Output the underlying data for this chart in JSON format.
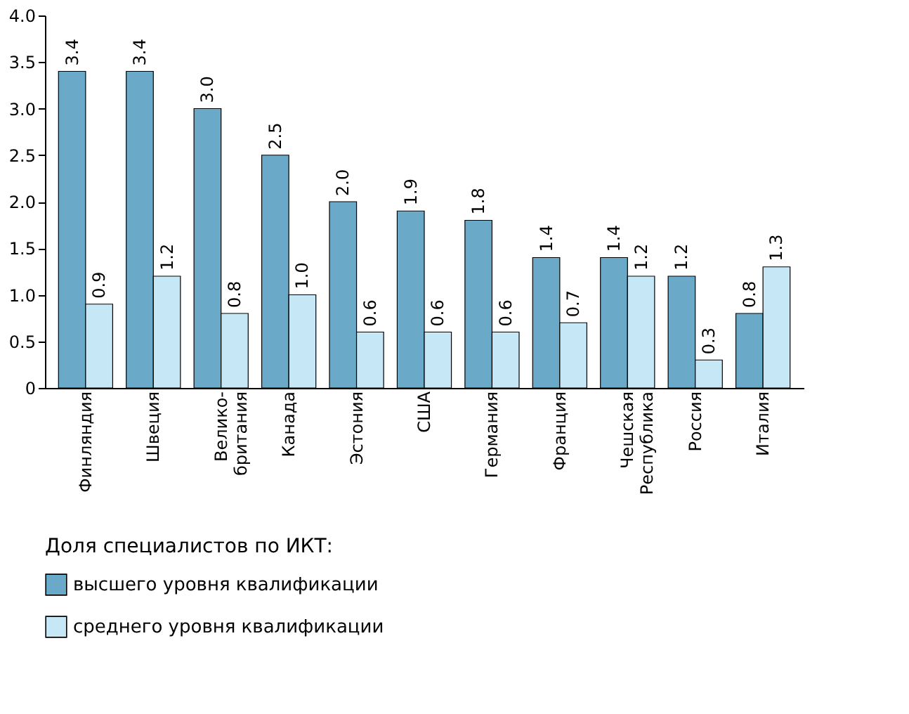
{
  "chart_data": {
    "type": "bar",
    "categories": [
      "Финляндия",
      "Швеция",
      "Велико-\nбритания",
      "Канада",
      "Эстония",
      "США",
      "Германия",
      "Франция",
      "Чешская\nРеспублика",
      "Россия",
      "Италия"
    ],
    "series": [
      {
        "name": "высшего уровня квалификации",
        "color": "#6aaac8",
        "values": [
          3.4,
          3.4,
          3.0,
          2.5,
          2.0,
          1.9,
          1.8,
          1.4,
          1.4,
          1.2,
          0.8
        ],
        "value_labels": [
          "3.4",
          "3.4",
          "3.0",
          "2.5",
          "2.0",
          "1.9",
          "1.8",
          "1.4",
          "1.4",
          "1.2",
          "0.8"
        ]
      },
      {
        "name": "среднего уровня квалификации",
        "color": "#c6e7f6",
        "values": [
          0.9,
          1.2,
          0.8,
          1.0,
          0.6,
          0.6,
          0.6,
          0.7,
          1.2,
          0.3,
          1.3
        ],
        "value_labels": [
          "0.9",
          "1.2",
          "0.8",
          "1.0",
          "0.6",
          "0.6",
          "0.6",
          "0.7",
          "1.2",
          "0.3",
          "1.3"
        ]
      }
    ],
    "legend_title": "Доля специалистов по ИКТ:",
    "legend": "bottom",
    "ylim": [
      0,
      4.0
    ],
    "yticks": [
      0,
      0.5,
      {
        "value": 1,
        "label": "1.0"
      },
      1.5,
      {
        "value": 2,
        "label": "2.0"
      },
      2.5,
      {
        "value": 3,
        "label": "3.0"
      },
      3.5,
      {
        "value": 4,
        "label": "4.0"
      }
    ],
    "grid": false
  }
}
